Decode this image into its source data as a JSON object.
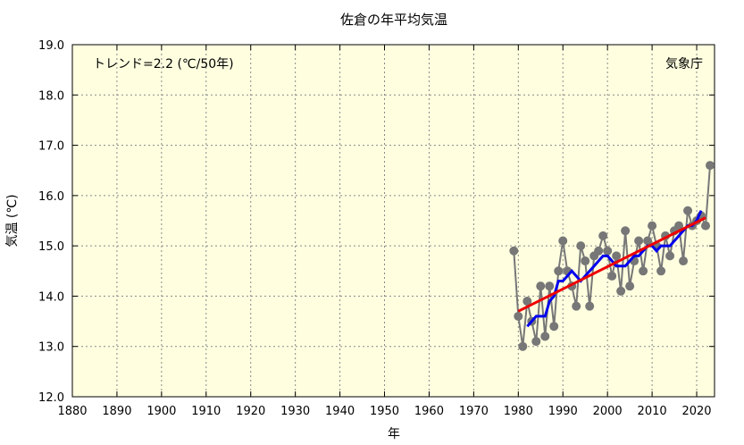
{
  "chart_data": {
    "type": "line",
    "title": "佐倉の年平均気温",
    "xlabel": "年",
    "ylabel": "気温 (℃)",
    "xlim": [
      1880,
      2024
    ],
    "ylim": [
      12.0,
      19.0
    ],
    "xticks": [
      1880,
      1890,
      1900,
      1910,
      1920,
      1930,
      1940,
      1950,
      1960,
      1970,
      1980,
      1990,
      2000,
      2010,
      2020
    ],
    "yticks": [
      "12.0",
      "13.0",
      "14.0",
      "15.0",
      "16.0",
      "17.0",
      "18.0",
      "19.0"
    ],
    "grid": true,
    "annotations": {
      "trend": "トレンド=2.2 (℃/50年)",
      "source": "気象庁"
    },
    "colors": {
      "background": "#ffffe0",
      "annual": "#777777",
      "moving_average": "#0000ee",
      "trend": "#ee0000"
    },
    "series": [
      {
        "kind": "annual",
        "x": [
          1979,
          1980,
          1981,
          1982,
          1983,
          1984,
          1985,
          1986,
          1987,
          1988,
          1989,
          1990,
          1991,
          1992,
          1993,
          1994,
          1995,
          1996,
          1997,
          1998,
          1999,
          2000,
          2001,
          2002,
          2003,
          2004,
          2005,
          2006,
          2007,
          2008,
          2009,
          2010,
          2011,
          2012,
          2013,
          2014,
          2015,
          2016,
          2017,
          2018,
          2019,
          2020,
          2021,
          2022,
          2023
        ],
        "values": [
          14.9,
          13.6,
          13.0,
          13.9,
          13.5,
          13.1,
          14.2,
          13.2,
          14.2,
          13.4,
          14.5,
          15.1,
          14.5,
          14.2,
          13.8,
          15.0,
          14.7,
          13.8,
          14.8,
          14.9,
          15.2,
          14.9,
          14.4,
          14.8,
          14.1,
          15.3,
          14.2,
          14.7,
          15.1,
          14.5,
          15.1,
          15.4,
          15.0,
          14.5,
          15.2,
          14.8,
          15.3,
          15.4,
          14.7,
          15.7,
          15.4,
          15.5,
          15.6,
          15.4,
          16.6
        ]
      },
      {
        "kind": "moving_average",
        "x": [
          1982,
          1983,
          1984,
          1985,
          1986,
          1987,
          1988,
          1989,
          1990,
          1991,
          1992,
          1993,
          1994,
          1995,
          1996,
          1997,
          1998,
          1999,
          2000,
          2001,
          2002,
          2003,
          2004,
          2005,
          2006,
          2007,
          2008,
          2009,
          2010,
          2011,
          2012,
          2013,
          2014,
          2015,
          2016,
          2017,
          2018,
          2019,
          2020,
          2021
        ],
        "values": [
          13.4,
          13.5,
          13.6,
          13.6,
          13.6,
          13.9,
          14.0,
          14.3,
          14.3,
          14.4,
          14.5,
          14.4,
          14.3,
          14.4,
          14.5,
          14.6,
          14.7,
          14.8,
          14.8,
          14.7,
          14.6,
          14.6,
          14.6,
          14.7,
          14.8,
          14.8,
          14.9,
          15.0,
          15.0,
          14.9,
          15.0,
          15.0,
          15.0,
          15.1,
          15.2,
          15.3,
          15.4,
          15.4,
          15.5,
          15.7
        ]
      },
      {
        "kind": "trend",
        "x": [
          1980,
          2022
        ],
        "values": [
          13.7,
          15.56
        ]
      }
    ]
  }
}
